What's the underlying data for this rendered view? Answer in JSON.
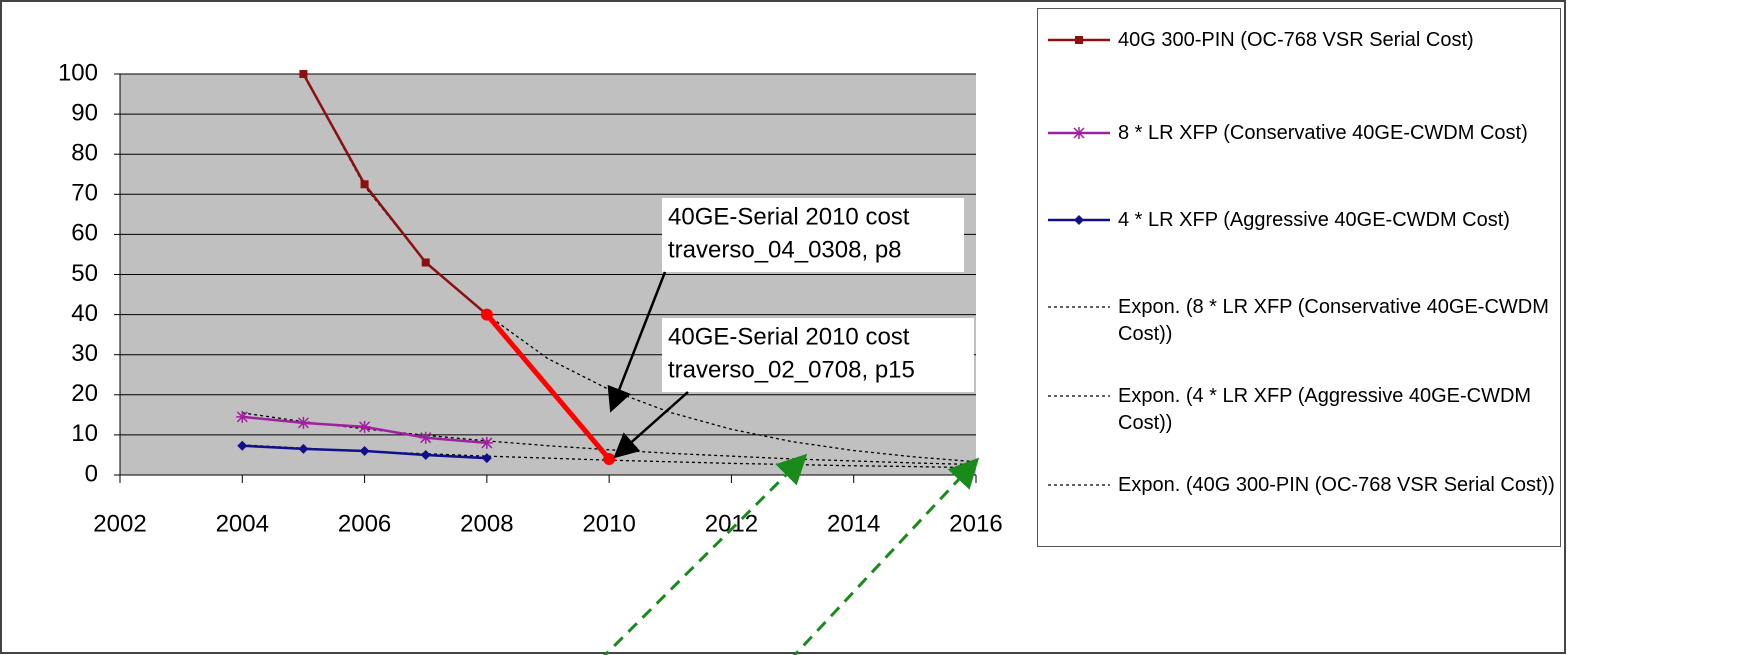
{
  "chart_data": {
    "type": "line",
    "xlim": [
      2002,
      2016
    ],
    "xticks": [
      2002,
      2004,
      2006,
      2008,
      2010,
      2012,
      2014,
      2016
    ],
    "ylim": [
      0,
      100
    ],
    "yticks": [
      0,
      10,
      20,
      30,
      40,
      50,
      60,
      70,
      80,
      90,
      100
    ],
    "grid": true,
    "series": [
      {
        "name": "40G 300-PIN (OC-768 VSR Serial Cost)",
        "color": "#8b1010",
        "marker": "square",
        "x": [
          2005,
          2006,
          2007,
          2008
        ],
        "values": [
          100,
          72.5,
          53,
          40
        ]
      },
      {
        "name": "8 * LR XFP (Conservative 40GE-CWDM Cost)",
        "color": "#a020a0",
        "marker": "star",
        "x": [
          2004,
          2005,
          2006,
          2007,
          2008
        ],
        "values": [
          14.5,
          13,
          12,
          9.3,
          8
        ]
      },
      {
        "name": "4 * LR XFP (Aggressive 40GE-CWDM Cost)",
        "color": "#10108b",
        "marker": "diamond",
        "x": [
          2004,
          2005,
          2006,
          2007,
          2008
        ],
        "values": [
          7.3,
          6.5,
          6,
          5,
          4.2
        ]
      },
      {
        "name": "Expon. (8 * LR XFP (Conservative 40GE-CWDM Cost))",
        "color": "#000000",
        "marker": "none",
        "dash": true,
        "x": [
          2004,
          2005,
          2006,
          2007,
          2008,
          2009,
          2010,
          2011,
          2012,
          2013,
          2014,
          2015,
          2016
        ],
        "values": [
          15.5,
          13.3,
          11.5,
          9.9,
          8.5,
          7.3,
          6.3,
          5.4,
          4.7,
          4,
          3.5,
          3,
          2.6
        ]
      },
      {
        "name": "Expon. (4 * LR XFP (Aggressive 40GE-CWDM Cost))",
        "color": "#000000",
        "marker": "none",
        "dash": true,
        "x": [
          2004,
          2005,
          2006,
          2007,
          2008,
          2009,
          2010,
          2011,
          2012,
          2013,
          2014,
          2015,
          2016
        ],
        "values": [
          7.5,
          6.7,
          5.9,
          5.3,
          4.7,
          4.2,
          3.7,
          3.3,
          2.9,
          2.6,
          2.3,
          2.1,
          1.8
        ]
      },
      {
        "name": "Expon. (40G 300-PIN (OC-768 VSR Serial Cost))",
        "color": "#000000",
        "marker": "none",
        "dash": true,
        "x": [
          2005,
          2006,
          2007,
          2008,
          2009,
          2010,
          2011,
          2012,
          2013,
          2014,
          2015,
          2016
        ],
        "values": [
          100,
          72,
          53,
          40,
          29,
          21.3,
          15.6,
          11.4,
          8.3,
          6.1,
          4.5,
          3.3
        ]
      },
      {
        "color": "#ff0000",
        "marker": "circle",
        "width": 5,
        "legend": false,
        "x": [
          2008,
          2010
        ],
        "values": [
          40,
          4
        ]
      }
    ],
    "annotations": [
      {
        "lines": [
          "40GE-Serial 2010 cost",
          "traverso_04_0308, p8"
        ]
      },
      {
        "lines": [
          "40GE-Serial 2010 cost",
          "traverso_02_0708, p15"
        ]
      }
    ]
  }
}
